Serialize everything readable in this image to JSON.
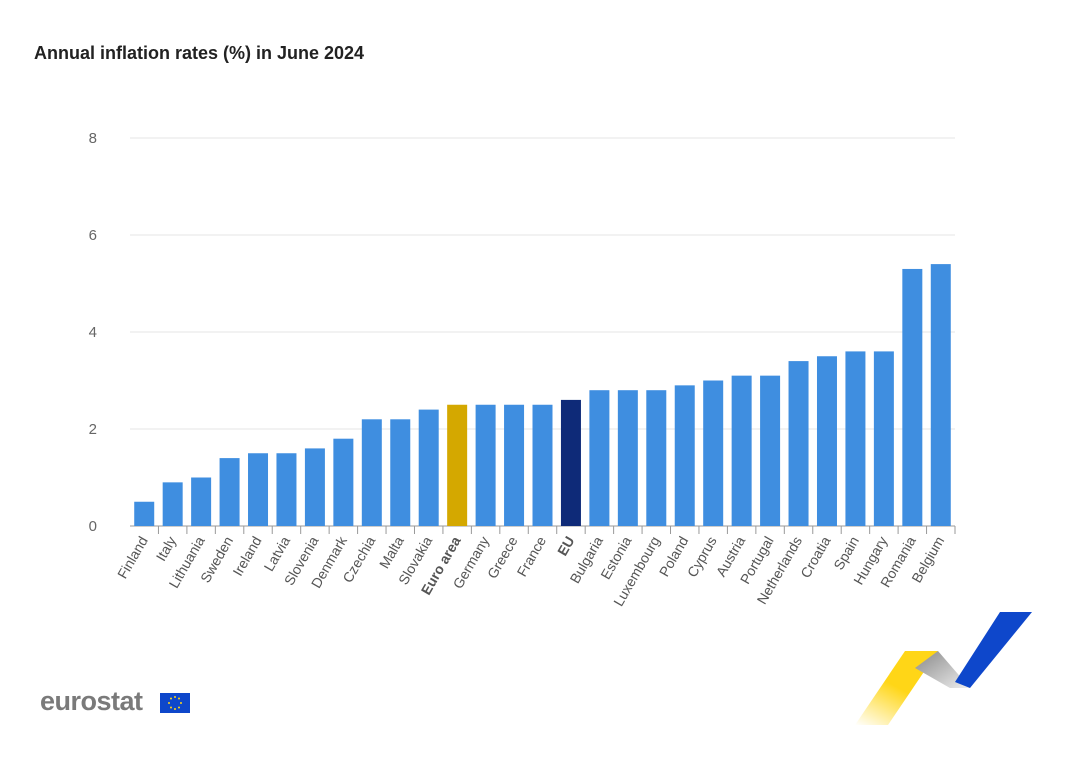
{
  "chart_data": {
    "type": "bar",
    "title": "Annual inflation rates (%) in June 2024",
    "xlabel": "",
    "ylabel": "",
    "ylim": [
      0,
      8
    ],
    "yticks": [
      0,
      2,
      4,
      6,
      8
    ],
    "grid": true,
    "categories": [
      "Finland",
      "Italy",
      "Lithuania",
      "Sweden",
      "Ireland",
      "Latvia",
      "Slovenia",
      "Denmark",
      "Czechia",
      "Malta",
      "Slovakia",
      "Euro area",
      "Germany",
      "Greece",
      "France",
      "EU",
      "Bulgaria",
      "Estonia",
      "Luxembourg",
      "Poland",
      "Cyprus",
      "Austria",
      "Portugal",
      "Netherlands",
      "Croatia",
      "Spain",
      "Hungary",
      "Romania",
      "Belgium"
    ],
    "values": [
      0.5,
      0.9,
      1.0,
      1.4,
      1.5,
      1.5,
      1.6,
      1.8,
      2.2,
      2.2,
      2.4,
      2.5,
      2.5,
      2.5,
      2.5,
      2.6,
      2.8,
      2.8,
      2.8,
      2.9,
      3.0,
      3.1,
      3.1,
      3.4,
      3.5,
      3.6,
      3.6,
      5.3,
      5.4
    ],
    "highlight": {
      "Euro area": "#d4a800",
      "EU": "#0e2a78"
    },
    "bold_categories": [
      "Euro area",
      "EU"
    ],
    "colors": {
      "default": "#3f8ee0"
    }
  },
  "branding": {
    "logo": "eurostat"
  }
}
